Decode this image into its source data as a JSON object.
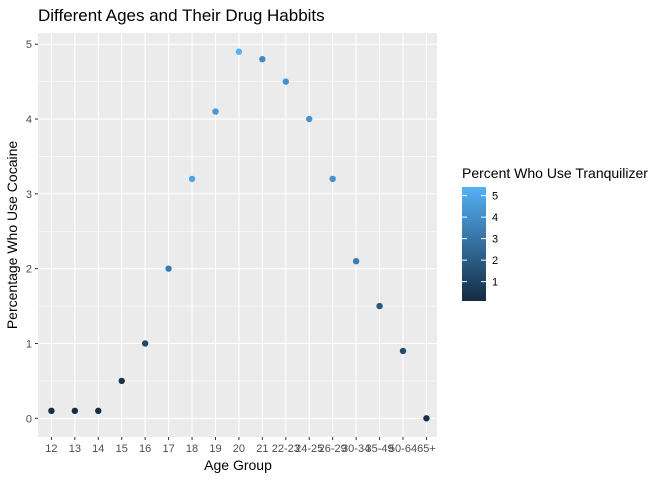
{
  "chart_data": {
    "type": "scatter",
    "title": "Different Ages and Their Drug Habbits",
    "xlabel": "Age Group",
    "ylabel": "Percentage Who Use Cocaine",
    "categories": [
      "12",
      "13",
      "14",
      "15",
      "16",
      "17",
      "18",
      "19",
      "20",
      "21",
      "22-23",
      "24-25",
      "26-29",
      "30-34",
      "35-49",
      "50-64",
      "65+"
    ],
    "series": [
      {
        "values": [
          0.1,
          0.1,
          0.1,
          0.5,
          1.0,
          2.0,
          3.2,
          4.1,
          4.9,
          4.8,
          4.5,
          4.0,
          3.2,
          2.1,
          1.5,
          0.9,
          0.0
        ],
        "color_values": [
          0.2,
          0.1,
          0.2,
          0.4,
          1.2,
          3.3,
          4.9,
          4.4,
          5.4,
          3.9,
          4.1,
          4.2,
          4.1,
          3.3,
          1.9,
          1.4,
          0.2
        ]
      }
    ],
    "ylim": [
      -0.25,
      5.15
    ],
    "y_ticks": [
      0,
      1,
      2,
      3,
      4,
      5
    ],
    "grid": true,
    "legend": {
      "title": "Percent Who Use Tranquilizer",
      "placement": "right",
      "range": [
        0.1,
        5.4
      ],
      "ticks": [
        1,
        2,
        3,
        4,
        5
      ],
      "color_low": "#132B43",
      "color_high": "#56B1F7"
    },
    "colors": {
      "panel_background": "#EBEBEB",
      "grid_major": "#FFFFFF",
      "tick_color": "#333333"
    }
  }
}
